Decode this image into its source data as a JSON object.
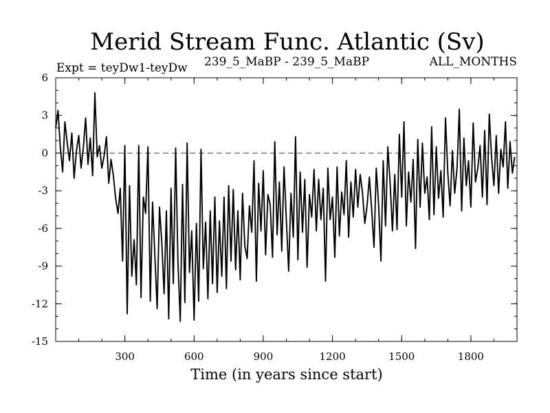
{
  "chart_data": {
    "type": "line",
    "title": "Merid Stream Func. Atlantic (Sv)",
    "subtitle_left": "Expt = teyDw1-teyDw",
    "subtitle_center": "239_5_MaBP - 239_5_MaBP",
    "subtitle_right": "ALL_MONTHS",
    "xlabel": "Time (in years since start)",
    "ylabel": "",
    "xlim": [
      0,
      2000
    ],
    "ylim": [
      -15,
      6
    ],
    "xticks": [
      300,
      600,
      900,
      1200,
      1500,
      1800
    ],
    "yticks": [
      6,
      3,
      0,
      -3,
      -6,
      -9,
      -12,
      -15
    ],
    "x_minor_step": 100,
    "y_minor_step": 1,
    "reference_line": {
      "y": 0,
      "style": "dashed"
    },
    "series": [
      {
        "name": "Merid Stream Func. Atlantic",
        "x_start": 0,
        "x_step": 10,
        "values": [
          2,
          3.4,
          0.5,
          -1.5,
          2.5,
          0.8,
          -0.6,
          1.6,
          -2,
          0.2,
          1.4,
          -1.2,
          0.5,
          2.8,
          -0.9,
          1.2,
          -1.8,
          4.8,
          -0.3,
          0.6,
          -1.2,
          -0.2,
          1.3,
          -2.4,
          -0.5,
          -1.8,
          -3.6,
          -4.8,
          -2.8,
          -8.6,
          0.6,
          -12.8,
          -2.6,
          -9.8,
          -6.9,
          -10.5,
          0.6,
          -11.5,
          -3.5,
          -4.8,
          0.5,
          -11.8,
          -3.9,
          -8.2,
          -12.4,
          -4.3,
          -7.1,
          -11.2,
          -4.6,
          -13.2,
          -2.8,
          -10.4,
          0.4,
          -8.6,
          -13.4,
          -2.5,
          -11.9,
          0.8,
          -9.5,
          -6.2,
          -13.3,
          -5.6,
          -11.8,
          0.3,
          -9.2,
          -5.5,
          -11.6,
          -4.6,
          -10.4,
          -3.5,
          -11.1,
          -5.4,
          -9.8,
          -3.5,
          -10.8,
          -2.6,
          -8.6,
          -2.9,
          -9.3,
          -4.6,
          -10.1,
          -3.2,
          -7.4,
          -8.4,
          -4.2,
          -6.3,
          -0.6,
          -10.2,
          -2.4,
          -6.2,
          -1.4,
          -8.1,
          -3.3,
          -4.1,
          -8.3,
          0.9,
          -6.5,
          -2.3,
          -7.8,
          -1.1,
          -5.3,
          -9.4,
          -3.2,
          -6.7,
          1.3,
          -8.5,
          -1.5,
          -6.3,
          -2.1,
          -9.1,
          -3.3,
          -5.1,
          -1.3,
          -6.2,
          -2.1,
          -5.3,
          -2.8,
          -10.2,
          -1.2,
          -5.3,
          -3.5,
          -8.3,
          -1.1,
          -6.6,
          -3.1,
          -4.9,
          -0.6,
          -6.7,
          -2.3,
          -5.1,
          -1.3,
          -4.3,
          -1.7,
          -3.1,
          -5.6,
          -4.2,
          -1.9,
          -4.5,
          -7.5,
          -1.2,
          -4.1,
          -8.6,
          -0.6,
          -5.8,
          0.5,
          -2.4,
          -6.2,
          -1.7,
          -6.1,
          1.5,
          -3.5,
          2.5,
          -5.8,
          -1.5,
          -3.9,
          -0.5,
          -7.6,
          1.1,
          -4.3,
          0.8,
          -3.2,
          -1.9,
          -5.3,
          2.1,
          -4.9,
          0.5,
          -3.6,
          -1.4,
          -5.1,
          2.8,
          -1.6,
          -4.2,
          0.2,
          -3.2,
          -1.2,
          3.5,
          -4.6,
          1.2,
          -2.6,
          -0.6,
          -4.3,
          2.4,
          -2.3,
          -1.2,
          0.6,
          -3.5,
          1.8,
          -4.1,
          3.1,
          -0.4,
          -2.6,
          1.4,
          -3.2,
          0.3,
          -1.1,
          2.5,
          -2.8,
          0.9,
          -1.6,
          -0.3
        ]
      }
    ]
  }
}
